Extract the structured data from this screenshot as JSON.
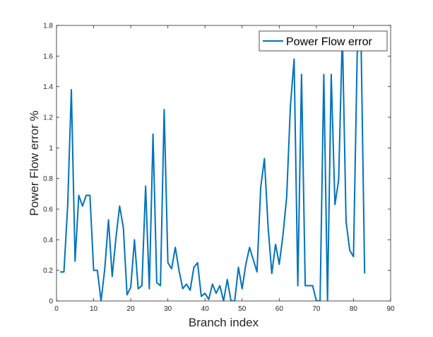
{
  "chart_data": {
    "type": "line",
    "title": "",
    "xlabel": "Branch index",
    "ylabel": "Power Flow error %",
    "xlim": [
      0,
      90
    ],
    "ylim": [
      0,
      1.8
    ],
    "xticks": [
      0,
      10,
      20,
      30,
      40,
      50,
      60,
      70,
      80,
      90
    ],
    "yticks": [
      0,
      0.2,
      0.4,
      0.6,
      0.8,
      1,
      1.2,
      1.4,
      1.6,
      1.8
    ],
    "ytick_labels": [
      "0",
      "0.2",
      "0.4",
      "0.6",
      "0.8",
      "1",
      "1.2",
      "1.4",
      "1.6",
      "1.8"
    ],
    "grid": false,
    "legend": "top-right",
    "series": [
      {
        "name": "Power Flow error",
        "color": "#0072BD",
        "x": [
          1,
          2,
          3,
          4,
          5,
          6,
          7,
          8,
          9,
          10,
          11,
          12,
          13,
          14,
          15,
          16,
          17,
          18,
          19,
          20,
          21,
          22,
          23,
          24,
          25,
          26,
          27,
          28,
          29,
          30,
          31,
          32,
          33,
          34,
          35,
          36,
          37,
          38,
          39,
          40,
          41,
          42,
          43,
          44,
          45,
          46,
          47,
          48,
          49,
          50,
          51,
          52,
          53,
          54,
          55,
          56,
          57,
          58,
          59,
          60,
          61,
          62,
          63,
          64,
          65,
          66,
          67,
          68,
          69,
          70,
          71,
          72,
          73,
          74,
          75,
          76,
          77,
          78,
          79,
          80,
          81,
          82,
          83
        ],
        "values": [
          0.19,
          0.19,
          0.62,
          1.38,
          0.26,
          0.69,
          0.62,
          0.69,
          0.69,
          0.2,
          0.2,
          0.0,
          0.21,
          0.53,
          0.16,
          0.41,
          0.62,
          0.48,
          0.04,
          0.09,
          0.4,
          0.08,
          0.1,
          0.75,
          0.08,
          1.09,
          0.12,
          0.1,
          1.25,
          0.25,
          0.21,
          0.35,
          0.2,
          0.08,
          0.11,
          0.07,
          0.22,
          0.25,
          0.03,
          0.05,
          0.01,
          0.11,
          0.05,
          0.1,
          0.0,
          0.14,
          0.0,
          0.0,
          0.22,
          0.08,
          0.24,
          0.35,
          0.27,
          0.19,
          0.74,
          0.93,
          0.48,
          0.18,
          0.37,
          0.24,
          0.43,
          0.68,
          1.27,
          1.58,
          0.1,
          1.48,
          0.1,
          0.1,
          0.1,
          0.0,
          0.0,
          1.48,
          0.0,
          1.48,
          0.63,
          0.79,
          1.75,
          0.52,
          0.33,
          0.29,
          1.62,
          1.76,
          0.18
        ]
      }
    ]
  }
}
